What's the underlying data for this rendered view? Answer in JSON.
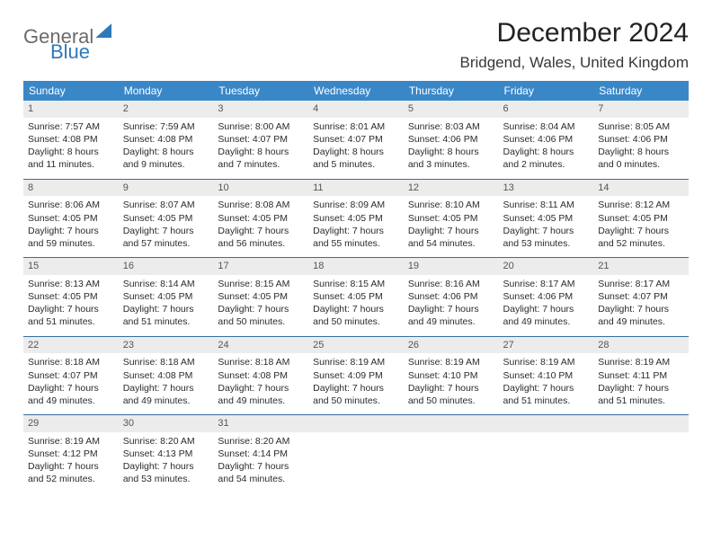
{
  "logo": {
    "text1": "General",
    "text2": "Blue"
  },
  "header": {
    "month": "December 2024",
    "location": "Bridgend, Wales, United Kingdom"
  },
  "weekdays": [
    "Sunday",
    "Monday",
    "Tuesday",
    "Wednesday",
    "Thursday",
    "Friday",
    "Saturday"
  ],
  "colors": {
    "header_bg": "#3a87c8",
    "header_text": "#ffffff",
    "daynum_bg": "#ececec",
    "row_divider": "#366fa0",
    "logo_blue": "#2f79b9",
    "logo_gray": "#6b6b6b"
  },
  "days": [
    {
      "n": 1,
      "sr": "7:57 AM",
      "ss": "4:08 PM",
      "dl": "8 hours and 11 minutes."
    },
    {
      "n": 2,
      "sr": "7:59 AM",
      "ss": "4:08 PM",
      "dl": "8 hours and 9 minutes."
    },
    {
      "n": 3,
      "sr": "8:00 AM",
      "ss": "4:07 PM",
      "dl": "8 hours and 7 minutes."
    },
    {
      "n": 4,
      "sr": "8:01 AM",
      "ss": "4:07 PM",
      "dl": "8 hours and 5 minutes."
    },
    {
      "n": 5,
      "sr": "8:03 AM",
      "ss": "4:06 PM",
      "dl": "8 hours and 3 minutes."
    },
    {
      "n": 6,
      "sr": "8:04 AM",
      "ss": "4:06 PM",
      "dl": "8 hours and 2 minutes."
    },
    {
      "n": 7,
      "sr": "8:05 AM",
      "ss": "4:06 PM",
      "dl": "8 hours and 0 minutes."
    },
    {
      "n": 8,
      "sr": "8:06 AM",
      "ss": "4:05 PM",
      "dl": "7 hours and 59 minutes."
    },
    {
      "n": 9,
      "sr": "8:07 AM",
      "ss": "4:05 PM",
      "dl": "7 hours and 57 minutes."
    },
    {
      "n": 10,
      "sr": "8:08 AM",
      "ss": "4:05 PM",
      "dl": "7 hours and 56 minutes."
    },
    {
      "n": 11,
      "sr": "8:09 AM",
      "ss": "4:05 PM",
      "dl": "7 hours and 55 minutes."
    },
    {
      "n": 12,
      "sr": "8:10 AM",
      "ss": "4:05 PM",
      "dl": "7 hours and 54 minutes."
    },
    {
      "n": 13,
      "sr": "8:11 AM",
      "ss": "4:05 PM",
      "dl": "7 hours and 53 minutes."
    },
    {
      "n": 14,
      "sr": "8:12 AM",
      "ss": "4:05 PM",
      "dl": "7 hours and 52 minutes."
    },
    {
      "n": 15,
      "sr": "8:13 AM",
      "ss": "4:05 PM",
      "dl": "7 hours and 51 minutes."
    },
    {
      "n": 16,
      "sr": "8:14 AM",
      "ss": "4:05 PM",
      "dl": "7 hours and 51 minutes."
    },
    {
      "n": 17,
      "sr": "8:15 AM",
      "ss": "4:05 PM",
      "dl": "7 hours and 50 minutes."
    },
    {
      "n": 18,
      "sr": "8:15 AM",
      "ss": "4:05 PM",
      "dl": "7 hours and 50 minutes."
    },
    {
      "n": 19,
      "sr": "8:16 AM",
      "ss": "4:06 PM",
      "dl": "7 hours and 49 minutes."
    },
    {
      "n": 20,
      "sr": "8:17 AM",
      "ss": "4:06 PM",
      "dl": "7 hours and 49 minutes."
    },
    {
      "n": 21,
      "sr": "8:17 AM",
      "ss": "4:07 PM",
      "dl": "7 hours and 49 minutes."
    },
    {
      "n": 22,
      "sr": "8:18 AM",
      "ss": "4:07 PM",
      "dl": "7 hours and 49 minutes."
    },
    {
      "n": 23,
      "sr": "8:18 AM",
      "ss": "4:08 PM",
      "dl": "7 hours and 49 minutes."
    },
    {
      "n": 24,
      "sr": "8:18 AM",
      "ss": "4:08 PM",
      "dl": "7 hours and 49 minutes."
    },
    {
      "n": 25,
      "sr": "8:19 AM",
      "ss": "4:09 PM",
      "dl": "7 hours and 50 minutes."
    },
    {
      "n": 26,
      "sr": "8:19 AM",
      "ss": "4:10 PM",
      "dl": "7 hours and 50 minutes."
    },
    {
      "n": 27,
      "sr": "8:19 AM",
      "ss": "4:10 PM",
      "dl": "7 hours and 51 minutes."
    },
    {
      "n": 28,
      "sr": "8:19 AM",
      "ss": "4:11 PM",
      "dl": "7 hours and 51 minutes."
    },
    {
      "n": 29,
      "sr": "8:19 AM",
      "ss": "4:12 PM",
      "dl": "7 hours and 52 minutes."
    },
    {
      "n": 30,
      "sr": "8:20 AM",
      "ss": "4:13 PM",
      "dl": "7 hours and 53 minutes."
    },
    {
      "n": 31,
      "sr": "8:20 AM",
      "ss": "4:14 PM",
      "dl": "7 hours and 54 minutes."
    }
  ],
  "labels": {
    "sunrise": "Sunrise: ",
    "sunset": "Sunset: ",
    "daylight": "Daylight: "
  },
  "layout": {
    "start_weekday": 0,
    "trailing_empty": 4
  }
}
